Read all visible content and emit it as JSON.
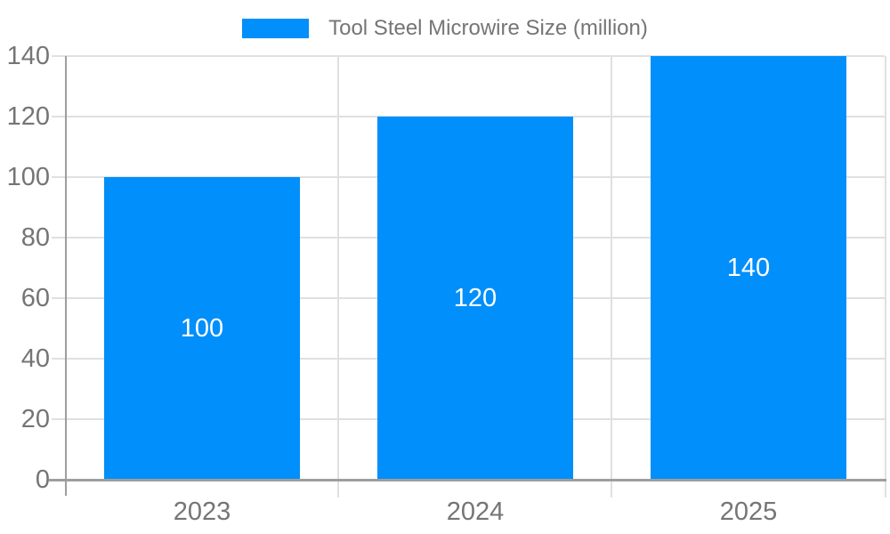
{
  "colors": {
    "bar": "#008FFB",
    "grid": "#E0E0E0",
    "axis": "#9E9E9E",
    "text": "#757575",
    "value_label": "#FFFFFF",
    "background": "#FFFFFF"
  },
  "legend": {
    "label": "Tool Steel Microwire Size (million)"
  },
  "chart_data": {
    "type": "bar",
    "title": "Tool Steel Microwire Size (million)",
    "categories": [
      "2023",
      "2024",
      "2025"
    ],
    "values": [
      100,
      120,
      140
    ],
    "series": [
      {
        "name": "Tool Steel Microwire Size (million)",
        "values": [
          100,
          120,
          140
        ]
      }
    ],
    "xlabel": "",
    "ylabel": "",
    "ylim": [
      0,
      140
    ],
    "yticks": [
      0,
      20,
      40,
      60,
      80,
      100,
      120,
      140
    ],
    "grid": true,
    "legend_position": "top",
    "value_labels_shown": true
  }
}
